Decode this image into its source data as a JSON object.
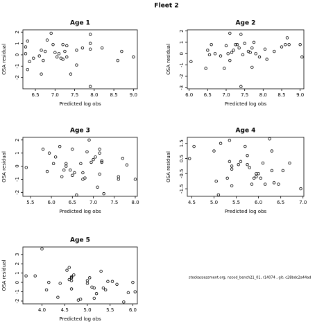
{
  "title": "Fleet 2",
  "footer": "stockassessment.org, nscod_bench21_01, r14074 , git: c28bdc2a44ad",
  "chart_data": [
    {
      "type": "scatter",
      "title": "Age 1",
      "x_label": "Predicted log obs",
      "y_label": "OSA residual",
      "color": "#000000",
      "x": [
        6.25,
        6.3,
        6.25,
        6.3,
        6.35,
        6.45,
        6.6,
        6.65,
        6.7,
        6.75,
        6.8,
        6.65,
        6.9,
        6.95,
        7.0,
        7.05,
        7.1,
        7.15,
        7.2,
        7.25,
        7.3,
        7.3,
        7.2,
        7.4,
        7.55,
        7.55,
        7.7,
        7.9,
        7.9,
        7.9,
        7.9,
        8.2,
        8.6,
        8.7,
        9.0
      ],
      "values": [
        0.7,
        1.2,
        0.1,
        -1.3,
        -0.6,
        -0.3,
        -0.1,
        0.4,
        -0.5,
        0.3,
        1.3,
        -1.7,
        1.9,
        0.9,
        0.2,
        -0.2,
        0.1,
        -0.3,
        0.9,
        0.3,
        0.8,
        -0.2,
        -0.4,
        -1.7,
        0.4,
        -0.9,
        0.6,
        1.0,
        1.8,
        0.5,
        -2.8,
        0.6,
        -0.5,
        0.3,
        -0.2
      ],
      "xlim": [
        6.18,
        9.1
      ],
      "ylim": [
        -3.0,
        2.2
      ],
      "xticks": [
        6.5,
        {
          "value": 7,
          "label": "7.0"
        },
        7.5,
        {
          "value": 8,
          "label": "8.0"
        },
        8.5,
        {
          "value": 9,
          "label": "9.0"
        }
      ],
      "yticks": [
        -2,
        -1,
        0,
        1,
        2
      ]
    },
    {
      "type": "scatter",
      "title": "Age 2",
      "x_label": "Predicted log obs",
      "y_label": "OSA residual",
      "color": "#000000",
      "x": [
        6.05,
        6.45,
        6.5,
        6.55,
        6.6,
        6.7,
        6.85,
        6.95,
        7.0,
        7.05,
        7.1,
        7.1,
        7.15,
        7.2,
        7.25,
        7.3,
        7.35,
        7.4,
        7.45,
        7.4,
        7.5,
        7.6,
        7.65,
        7.7,
        7.7,
        7.75,
        7.8,
        7.9,
        8.05,
        8.1,
        8.3,
        8.5,
        8.6,
        8.65,
        8.7,
        9.0,
        9.05
      ],
      "values": [
        -0.7,
        -1.3,
        0.3,
        -0.1,
        0.8,
        0.0,
        -0.2,
        -1.3,
        0.7,
        0.0,
        1.8,
        -0.6,
        0.1,
        0.3,
        0.8,
        0.8,
        0.5,
        1.7,
        -0.1,
        -2.9,
        0.9,
        0.2,
        0.1,
        0.5,
        -1.2,
        1.0,
        0.0,
        -0.3,
        0.4,
        -0.5,
        0.2,
        0.6,
        0.8,
        1.4,
        0.8,
        0.8,
        -0.3
      ],
      "xlim": [
        5.95,
        9.1
      ],
      "ylim": [
        -3.1,
        2.1
      ],
      "xticks": [
        {
          "value": 6,
          "label": "6.0"
        },
        6.5,
        {
          "value": 7,
          "label": "7.0"
        },
        7.5,
        {
          "value": 8,
          "label": "8.0"
        },
        8.5,
        {
          "value": 9,
          "label": "9.0"
        }
      ],
      "yticks": [
        -3,
        -2,
        -1,
        0,
        1,
        2
      ]
    },
    {
      "type": "scatter",
      "title": "Age 3",
      "x_label": "Predicted log obs",
      "y_label": "OSA residual",
      "color": "#000000",
      "x": [
        5.4,
        5.8,
        5.9,
        5.95,
        6.05,
        6.1,
        6.2,
        6.25,
        6.3,
        6.35,
        6.35,
        6.45,
        6.5,
        6.5,
        6.55,
        6.6,
        6.7,
        6.75,
        6.75,
        6.8,
        6.85,
        6.9,
        6.95,
        7.0,
        7.05,
        7.1,
        7.15,
        7.15,
        7.2,
        7.2,
        7.15,
        7.25,
        7.6,
        7.6,
        7.7,
        7.8,
        8.0
      ],
      "values": [
        -0.1,
        1.3,
        -0.4,
        1.0,
        0.2,
        0.7,
        1.5,
        -0.8,
        -0.3,
        0.2,
        0.0,
        -0.3,
        1.3,
        -0.7,
        -0.5,
        -2.2,
        0.2,
        -0.5,
        -1.0,
        -0.9,
        1.1,
        2.0,
        0.3,
        0.5,
        0.7,
        -1.6,
        1.3,
        1.0,
        0.4,
        0.3,
        -0.6,
        -2.1,
        -0.8,
        -1.0,
        0.6,
        0.1,
        -1.0
      ],
      "xlim": [
        5.32,
        8.05
      ],
      "ylim": [
        -2.3,
        2.2
      ],
      "xticks": [
        5.5,
        {
          "value": 6,
          "label": "6.0"
        },
        6.5,
        {
          "value": 7,
          "label": "7.0"
        },
        7.5,
        {
          "value": 8,
          "label": "8.0"
        }
      ],
      "yticks": [
        -2,
        -1,
        0,
        1,
        2
      ]
    },
    {
      "type": "scatter",
      "title": "Age 4",
      "x_label": "Predicted log obs",
      "y_label": "OSA residual",
      "color": "#000000",
      "x": [
        4.45,
        4.55,
        5.0,
        5.05,
        5.1,
        5.15,
        5.3,
        5.35,
        5.35,
        5.4,
        5.4,
        5.4,
        5.55,
        5.6,
        5.7,
        5.75,
        5.75,
        5.8,
        5.85,
        5.9,
        5.95,
        5.95,
        6.0,
        6.05,
        6.1,
        6.15,
        6.25,
        6.3,
        6.3,
        6.35,
        6.45,
        6.55,
        6.7,
        6.95
      ],
      "values": [
        0.5,
        1.3,
        1.0,
        -1.0,
        -1.9,
        1.5,
        -0.8,
        1.7,
        0.3,
        -0.2,
        -1.3,
        0.0,
        0.1,
        0.3,
        1.3,
        0.7,
        0.1,
        -0.1,
        -1.2,
        -0.8,
        -0.5,
        -0.7,
        -0.5,
        -0.8,
        0.2,
        -1.2,
        1.8,
        1.0,
        -0.3,
        -1.1,
        -1.2,
        -0.3,
        0.2,
        -1.5
      ],
      "xlim": [
        4.4,
        7.02
      ],
      "ylim": [
        -2.0,
        1.9
      ],
      "xticks": [
        4.5,
        {
          "value": 5,
          "label": "5.0"
        },
        5.5,
        {
          "value": 6,
          "label": "6.0"
        },
        6.5,
        {
          "value": 7,
          "label": "7.0"
        }
      ],
      "yticks": [
        -1.5,
        -0.5,
        0.5,
        1.5
      ]
    },
    {
      "type": "scatter",
      "title": "Age 5",
      "x_label": "Predicted log obs",
      "y_label": "OSA residual",
      "color": "#000000",
      "x": [
        3.65,
        3.85,
        4.0,
        4.1,
        4.15,
        4.35,
        4.4,
        4.55,
        4.6,
        4.6,
        4.65,
        4.65,
        4.65,
        4.65,
        4.7,
        4.8,
        4.85,
        5.0,
        5.0,
        5.05,
        5.1,
        5.15,
        5.15,
        5.2,
        5.3,
        5.35,
        5.4,
        5.45,
        5.55,
        5.65,
        5.8,
        5.9,
        6.0,
        6.05
      ],
      "values": [
        0.7,
        0.7,
        3.6,
        -0.8,
        0.0,
        -1.6,
        -0.1,
        1.3,
        1.6,
        0.3,
        0.6,
        0.5,
        0.2,
        -0.7,
        0.8,
        -1.9,
        -1.8,
        0.2,
        -0.1,
        0.5,
        -0.5,
        -0.6,
        -1.7,
        -1.2,
        1.2,
        -0.6,
        -0.8,
        0.1,
        0.1,
        -0.2,
        -2.1,
        -1.1,
        0.0,
        -1.0
      ],
      "xlim": [
        3.58,
        6.1
      ],
      "ylim": [
        -2.3,
        3.8
      ],
      "xticks": [
        {
          "value": 4,
          "label": "4.0"
        },
        4.5,
        {
          "value": 5,
          "label": "5.0"
        },
        5.5,
        {
          "value": 6,
          "label": "6.0"
        }
      ],
      "yticks": [
        -2,
        -1,
        0,
        1,
        2,
        3
      ]
    }
  ]
}
